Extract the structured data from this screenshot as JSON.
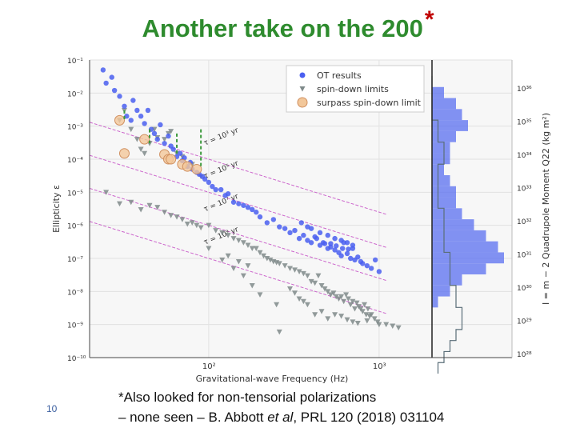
{
  "slide": {
    "title": "Another take on the 200",
    "title_star": "*",
    "page_number": "10",
    "footnote_line1": "*Also looked for non-tensorial polarizations",
    "footnote_line2_a": "– none seen – B. Abbott ",
    "footnote_line2_b": "et al",
    "footnote_line2_c": ", PRL 120 (2018) 031104"
  },
  "colors": {
    "title": "#2e8b2e",
    "star": "#c00000",
    "ot_points": "#4a5ff0",
    "spindown_points": "#7f8a8a",
    "surpass_fill": "#f2c79a",
    "guide_lines": "#cc66cc",
    "dashed_arrows": "#3d9b3d",
    "histogram_ot": "#5a6ff0",
    "histogram_sd": "#5a6e78"
  },
  "chart_data": {
    "type": "scatter",
    "xlabel": "Gravitational-wave Frequency (Hz)",
    "ylabel": "Ellipticity ε",
    "y2label": "I = m − 2 Quadrupole Moment Q22 (kg m²)",
    "x_scale": "log",
    "y_scale": "log",
    "xlim": [
      20,
      2000
    ],
    "ylim": [
      1e-10,
      0.1
    ],
    "x_ticks": [
      "10²",
      "10³"
    ],
    "y_ticks": [
      "10⁻¹",
      "10⁻²",
      "10⁻³",
      "10⁻⁴",
      "10⁻⁵",
      "10⁻⁶",
      "10⁻⁷",
      "10⁻⁸",
      "10⁻⁹",
      "10⁻¹⁰"
    ],
    "y2_ticks": [
      "10³⁶",
      "10³⁵",
      "10³⁴",
      "10³³",
      "10³²",
      "10³¹",
      "10³⁰",
      "10²⁹",
      "10²⁸"
    ],
    "grid": true,
    "legend_position": "top-right",
    "legend": [
      "OT results",
      "spin-down limits",
      "surpass spin-down limit"
    ],
    "guide_lines": [
      {
        "label": "τ = 10³ yr",
        "ell_at_100Hz": 0.0001
      },
      {
        "label": "τ = 10⁵ yr",
        "ell_at_100Hz": 1e-05
      },
      {
        "label": "τ = 10⁷ yr",
        "ell_at_100Hz": 1e-06
      },
      {
        "label": "τ = 10⁹ yr",
        "ell_at_100Hz": 1e-07
      }
    ],
    "series": [
      {
        "name": "OT results",
        "marker": "circle",
        "points": [
          [
            24,
            0.05
          ],
          [
            25,
            0.02
          ],
          [
            27,
            0.03
          ],
          [
            28,
            0.012
          ],
          [
            30,
            0.008
          ],
          [
            32,
            0.004
          ],
          [
            33,
            0.002
          ],
          [
            35,
            0.0015
          ],
          [
            36,
            0.006
          ],
          [
            38,
            0.003
          ],
          [
            40,
            0.002
          ],
          [
            42,
            0.0012
          ],
          [
            44,
            0.003
          ],
          [
            46,
            0.0008
          ],
          [
            48,
            0.0006
          ],
          [
            50,
            0.0004
          ],
          [
            52,
            0.0011
          ],
          [
            55,
            0.0003
          ],
          [
            58,
            0.0005
          ],
          [
            60,
            0.00025
          ],
          [
            62,
            0.0002
          ],
          [
            65,
            0.00012
          ],
          [
            68,
            0.00015
          ],
          [
            70,
            9e-05
          ],
          [
            72,
            0.00011
          ],
          [
            75,
            6e-05
          ],
          [
            78,
            8e-05
          ],
          [
            80,
            5e-05
          ],
          [
            85,
            4e-05
          ],
          [
            88,
            3.5e-05
          ],
          [
            92,
            3e-05
          ],
          [
            95,
            2.5e-05
          ],
          [
            100,
            2e-05
          ],
          [
            105,
            1.5e-05
          ],
          [
            110,
            1.2e-05
          ],
          [
            118,
            1.2e-05
          ],
          [
            125,
            8e-06
          ],
          [
            130,
            9e-06
          ],
          [
            140,
            5e-06
          ],
          [
            150,
            4.5e-06
          ],
          [
            160,
            4e-06
          ],
          [
            170,
            3.5e-06
          ],
          [
            180,
            3e-06
          ],
          [
            190,
            2.5e-06
          ],
          [
            200,
            1.8e-06
          ],
          [
            220,
            1.2e-06
          ],
          [
            240,
            1.5e-06
          ],
          [
            260,
            9e-07
          ],
          [
            280,
            8e-07
          ],
          [
            300,
            6e-07
          ],
          [
            320,
            7e-07
          ],
          [
            340,
            4e-07
          ],
          [
            360,
            5e-07
          ],
          [
            380,
            3.5e-07
          ],
          [
            400,
            3e-07
          ],
          [
            420,
            4.5e-07
          ],
          [
            450,
            2.5e-07
          ],
          [
            480,
            2.8e-07
          ],
          [
            500,
            2e-07
          ],
          [
            520,
            2.2e-07
          ],
          [
            550,
            1.8e-07
          ],
          [
            580,
            1.5e-07
          ],
          [
            600,
            1.2e-07
          ],
          [
            620,
            3e-07
          ],
          [
            650,
            1.4e-07
          ],
          [
            680,
            1e-07
          ],
          [
            700,
            2e-07
          ],
          [
            720,
            9e-08
          ],
          [
            750,
            1.1e-07
          ],
          [
            780,
            8e-08
          ],
          [
            800,
            7e-08
          ],
          [
            850,
            6e-08
          ],
          [
            900,
            5e-08
          ],
          [
            950,
            9e-08
          ],
          [
            1000,
            4e-08
          ],
          [
            450,
            6e-07
          ],
          [
            400,
            8e-07
          ],
          [
            350,
            1.2e-06
          ],
          [
            500,
            5e-07
          ],
          [
            550,
            4e-07
          ],
          [
            600,
            3.5e-07
          ],
          [
            650,
            3e-07
          ],
          [
            700,
            2.5e-07
          ],
          [
            430,
            4e-07
          ],
          [
            470,
            3e-07
          ],
          [
            520,
            2.8e-07
          ],
          [
            560,
            2.4e-07
          ],
          [
            610,
            2e-07
          ],
          [
            660,
            1.9e-07
          ],
          [
            380,
            9e-07
          ]
        ]
      },
      {
        "name": "spin-down limits",
        "marker": "triangle-down",
        "points": [
          [
            30,
            0.0015
          ],
          [
            32,
            0.003
          ],
          [
            35,
            0.0008
          ],
          [
            38,
            0.0004
          ],
          [
            40,
            0.0002
          ],
          [
            42,
            0.00015
          ],
          [
            45,
            0.0003
          ],
          [
            48,
            0.0008
          ],
          [
            50,
            0.00045
          ],
          [
            55,
            0.0004
          ],
          [
            58,
            0.0006
          ],
          [
            60,
            0.0007
          ],
          [
            65,
            0.00015
          ],
          [
            70,
            0.00012
          ],
          [
            80,
            7e-05
          ],
          [
            90,
            3e-05
          ],
          [
            25,
            1e-05
          ],
          [
            30,
            4.5e-06
          ],
          [
            35,
            5e-06
          ],
          [
            40,
            3e-06
          ],
          [
            45,
            4e-06
          ],
          [
            50,
            3.5e-06
          ],
          [
            55,
            2.5e-06
          ],
          [
            60,
            2e-06
          ],
          [
            65,
            1.8e-06
          ],
          [
            70,
            1.5e-06
          ],
          [
            75,
            1.1e-06
          ],
          [
            80,
            1.2e-06
          ],
          [
            85,
            1e-06
          ],
          [
            90,
            8.5e-07
          ],
          [
            100,
            1e-06
          ],
          [
            110,
            7e-07
          ],
          [
            120,
            6e-07
          ],
          [
            130,
            5e-07
          ],
          [
            140,
            4e-07
          ],
          [
            150,
            3.5e-07
          ],
          [
            160,
            3e-07
          ],
          [
            170,
            2.5e-07
          ],
          [
            180,
            2e-07
          ],
          [
            190,
            2e-07
          ],
          [
            200,
            1.5e-07
          ],
          [
            210,
            1.2e-07
          ],
          [
            220,
            1e-07
          ],
          [
            230,
            9e-08
          ],
          [
            240,
            8e-08
          ],
          [
            250,
            7.5e-08
          ],
          [
            260,
            7e-08
          ],
          [
            280,
            6e-08
          ],
          [
            300,
            5e-08
          ],
          [
            320,
            4.5e-08
          ],
          [
            340,
            4e-08
          ],
          [
            360,
            3.5e-08
          ],
          [
            380,
            3e-08
          ],
          [
            400,
            2e-08
          ],
          [
            420,
            1.8e-08
          ],
          [
            440,
            3e-08
          ],
          [
            460,
            1.5e-08
          ],
          [
            480,
            1.2e-08
          ],
          [
            500,
            1e-08
          ],
          [
            520,
            8e-09
          ],
          [
            540,
            9e-09
          ],
          [
            560,
            7e-09
          ],
          [
            580,
            6e-09
          ],
          [
            600,
            7e-09
          ],
          [
            620,
            5e-09
          ],
          [
            640,
            8e-09
          ],
          [
            660,
            6e-09
          ],
          [
            680,
            4e-09
          ],
          [
            700,
            5e-09
          ],
          [
            720,
            3e-09
          ],
          [
            740,
            4.5e-09
          ],
          [
            760,
            3.5e-09
          ],
          [
            780,
            3e-09
          ],
          [
            800,
            2.5e-09
          ],
          [
            820,
            4e-09
          ],
          [
            840,
            2e-09
          ],
          [
            860,
            3e-09
          ],
          [
            880,
            1.8e-09
          ],
          [
            900,
            2e-09
          ],
          [
            940,
            1.5e-09
          ],
          [
            980,
            1.2e-09
          ],
          [
            1000,
            1e-09
          ],
          [
            1100,
            1e-09
          ],
          [
            1200,
            9e-10
          ],
          [
            1300,
            8e-10
          ],
          [
            300,
            1.2e-08
          ],
          [
            320,
            9e-09
          ],
          [
            340,
            6e-09
          ],
          [
            360,
            5e-09
          ],
          [
            380,
            4e-09
          ],
          [
            120,
            9e-08
          ],
          [
            140,
            5e-08
          ],
          [
            160,
            3e-08
          ],
          [
            180,
            1.5e-08
          ],
          [
            200,
            8e-09
          ],
          [
            100,
            2e-07
          ],
          [
            130,
            1.2e-07
          ],
          [
            150,
            8e-08
          ],
          [
            170,
            6e-08
          ],
          [
            250,
            4e-09
          ],
          [
            260,
            6e-10
          ],
          [
            420,
            2e-09
          ],
          [
            460,
            2.5e-09
          ],
          [
            500,
            1.5e-09
          ],
          [
            550,
            2e-09
          ],
          [
            600,
            1.8e-09
          ],
          [
            650,
            1.4e-09
          ],
          [
            700,
            1.2e-09
          ],
          [
            750,
            1.1e-09
          ],
          [
            850,
            1.3e-09
          ]
        ]
      },
      {
        "name": "surpass spin-down limit",
        "marker": "circle-large",
        "points": [
          [
            30,
            0.0015
          ],
          [
            32,
            0.00015
          ],
          [
            42,
            0.0004
          ],
          [
            55,
            0.00014
          ],
          [
            58,
            0.0001
          ],
          [
            60,
            0.0001
          ],
          [
            70,
            7e-05
          ],
          [
            75,
            6e-05
          ],
          [
            85,
            5e-05
          ]
        ]
      }
    ],
    "dashed_arrows": [
      {
        "x": 32,
        "from": 0.003,
        "to": 0.0015
      },
      {
        "x": 45,
        "from": 0.0008,
        "to": 0.0003
      },
      {
        "x": 65,
        "from": 0.0006,
        "to": 0.00014
      },
      {
        "x": 90,
        "from": 0.0008,
        "to": 6e-05
      }
    ],
    "histograms": {
      "ot_results": [
        0,
        2,
        4,
        5,
        6,
        4,
        3,
        3,
        2,
        3,
        4,
        4,
        5,
        7,
        9,
        11,
        12,
        9,
        5,
        3,
        1,
        0,
        0,
        0,
        0,
        0,
        0
      ],
      "spin_down": [
        0,
        0,
        0,
        0,
        1,
        1,
        2,
        2,
        1,
        1,
        1,
        1,
        2,
        2,
        2,
        2,
        3,
        3,
        3,
        4,
        4,
        5,
        5,
        4,
        3,
        2,
        1
      ]
    }
  }
}
